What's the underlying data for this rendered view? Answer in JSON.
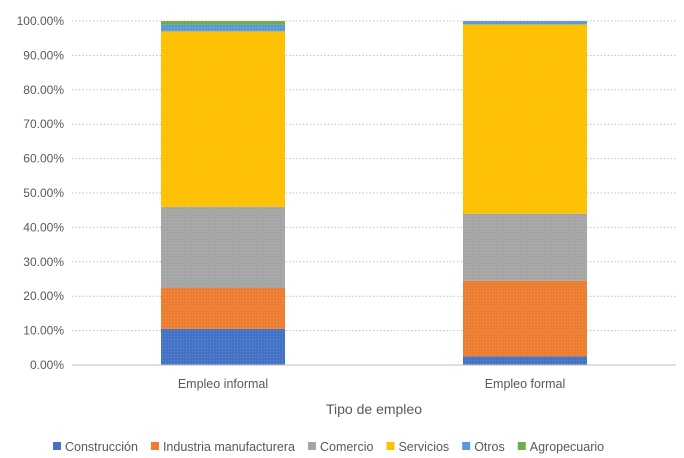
{
  "chart_data": {
    "type": "bar",
    "stacked": true,
    "title": "",
    "xlabel": "Tipo de empleo",
    "ylabel": "",
    "ylim": [
      0,
      100
    ],
    "yticks": [
      "0.00%",
      "10.00%",
      "20.00%",
      "30.00%",
      "40.00%",
      "50.00%",
      "60.00%",
      "70.00%",
      "80.00%",
      "90.00%",
      "100.00%"
    ],
    "grid": true,
    "legend_position": "bottom",
    "categories": [
      "Empleo informal",
      "Empleo formal"
    ],
    "series": [
      {
        "name": "Construcción",
        "color": "#4472c4",
        "values": [
          10.5,
          2.5
        ]
      },
      {
        "name": "Industria manufacturera",
        "color": "#ed7d31",
        "values": [
          12.0,
          22.0
        ]
      },
      {
        "name": "Comercio",
        "color": "#a5a5a5",
        "values": [
          23.5,
          19.5
        ]
      },
      {
        "name": "Servicios",
        "color": "#ffc000",
        "values": [
          51.0,
          55.0
        ]
      },
      {
        "name": "Otros",
        "color": "#5b9bd5",
        "values": [
          2.0,
          1.0
        ]
      },
      {
        "name": "Agropecuario",
        "color": "#70ad47",
        "values": [
          1.0,
          0.0
        ]
      }
    ]
  }
}
